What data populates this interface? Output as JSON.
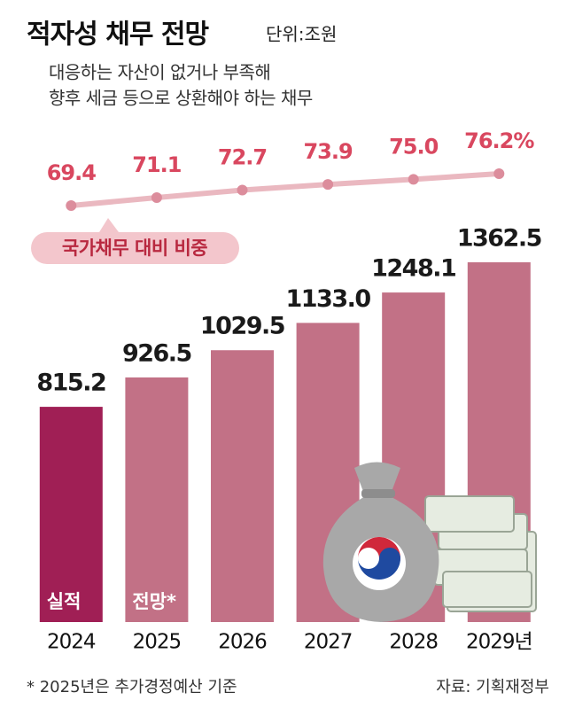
{
  "chart_data": {
    "type": "bar",
    "title": "적자성 채무 전망",
    "unit": "단위:조원",
    "subtitle": [
      "대응하는 자산이 없거나 부족해",
      "향후 세금 등으로 상환해야 하는 채무"
    ],
    "categories": [
      "2024",
      "2025",
      "2026",
      "2027",
      "2028",
      "2029년"
    ],
    "series": [
      {
        "type": "bar",
        "values": [
          815.2,
          926.5,
          1029.5,
          1133.0,
          1248.1,
          1362.5
        ],
        "value_labels": [
          "815.2",
          "926.5",
          "1029.5",
          "1133.0",
          "1248.1",
          "1362.5"
        ],
        "colors": [
          "#a01f55",
          "#c27186",
          "#c27186",
          "#c27186",
          "#c27186",
          "#c27186"
        ]
      },
      {
        "type": "line",
        "name": "국가채무 대비 비중",
        "values": [
          69.4,
          71.1,
          72.7,
          73.9,
          75.0,
          76.2
        ],
        "value_labels": [
          "69.4",
          "71.1",
          "72.7",
          "73.9",
          "75.0",
          "76.2%"
        ],
        "color": "#eab8c0",
        "marker_color": "#dc8d9c"
      }
    ],
    "bar_notes": [
      {
        "index": 0,
        "text": "실적"
      },
      {
        "index": 1,
        "text": "전망*"
      }
    ],
    "footnote": "* 2025년은 추가경정예산 기준",
    "source": "자료: 기획재정부"
  }
}
